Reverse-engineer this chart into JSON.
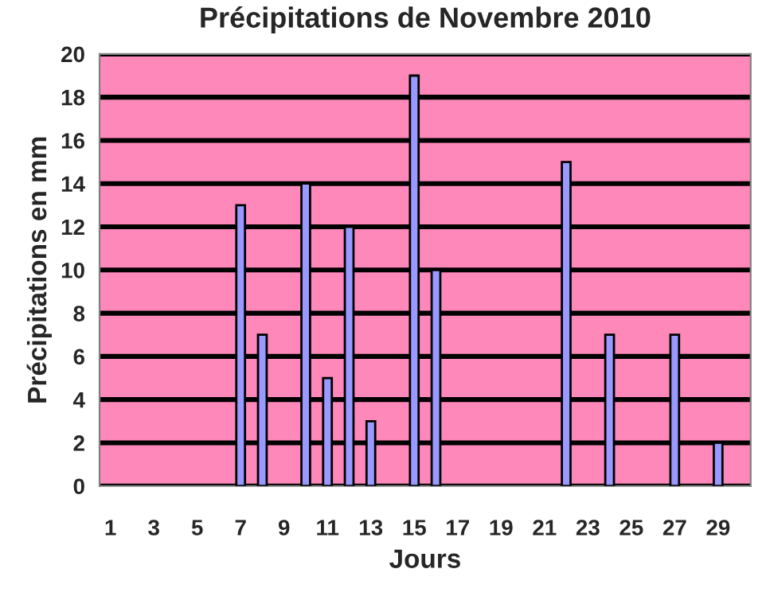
{
  "chart_data": {
    "type": "bar",
    "title": "Précipitations de Novembre 2010",
    "xlabel": "Jours",
    "ylabel": "Précipitations en mm",
    "categories": [
      "1",
      null,
      "3",
      null,
      "5",
      null,
      "7",
      null,
      "9",
      null,
      "11",
      null,
      "13",
      null,
      "15",
      null,
      "17",
      null,
      "19",
      null,
      "21",
      null,
      "23",
      null,
      "25",
      null,
      "27",
      null,
      "29",
      null
    ],
    "values": [
      null,
      null,
      null,
      null,
      null,
      null,
      13,
      7,
      null,
      14,
      5,
      12,
      3,
      null,
      19,
      10,
      null,
      null,
      null,
      null,
      null,
      15,
      null,
      7,
      null,
      null,
      7,
      null,
      2,
      null
    ],
    "color": "#9999ff",
    "ylim": [
      0,
      20
    ],
    "yticks": [
      0,
      2,
      4,
      6,
      8,
      10,
      12,
      14,
      16,
      18,
      20
    ],
    "grid": "y",
    "legend": false
  }
}
